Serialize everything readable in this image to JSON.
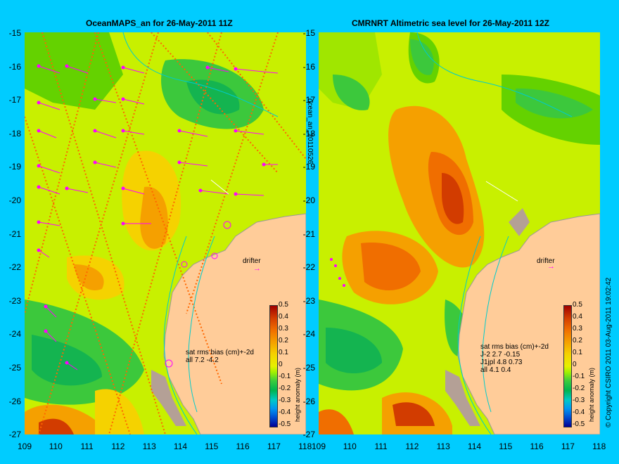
{
  "left_panel": {
    "title": "OceanMAPS_an for 26-May-2011 11Z",
    "stats": [
      "sat rms bias (cm)+-2d",
      "all 7.2 -4.2"
    ]
  },
  "right_panel": {
    "title": "CMRNRT Altimetric sea level  for 26-May-2011 12Z",
    "stats": [
      "sat rms bias (cm)+-2d",
      "J-2   2.7 -0.15",
      "J1jpl 4.8 0.73",
      "all 4.1 0.4"
    ]
  },
  "side_label": "ocean_an_20110526",
  "copyright": "© Copyright CSIRO 2011  03-Aug-2011 19:02:42",
  "drifter_label": "drifter",
  "latitude_labels": [
    "-15",
    "-16",
    "-17",
    "-18",
    "-19",
    "-20",
    "-21",
    "-22",
    "-23",
    "-24",
    "-25",
    "-26",
    "-27"
  ],
  "longitude_labels": [
    "109",
    "110",
    "111",
    "112",
    "113",
    "114",
    "115",
    "116",
    "117",
    "118"
  ],
  "colorbar": {
    "label": "height anomaly (m)",
    "ticks": [
      "0.5",
      "0.4",
      "0.3",
      "0.2",
      "0.1",
      "0",
      "-0.1",
      "-0.2",
      "-0.3",
      "-0.4",
      "-0.5"
    ]
  },
  "colors": {
    "background": "#00ccff",
    "land": "#ffcc99",
    "track": "#ff00ff",
    "coast": "#00cccc"
  }
}
